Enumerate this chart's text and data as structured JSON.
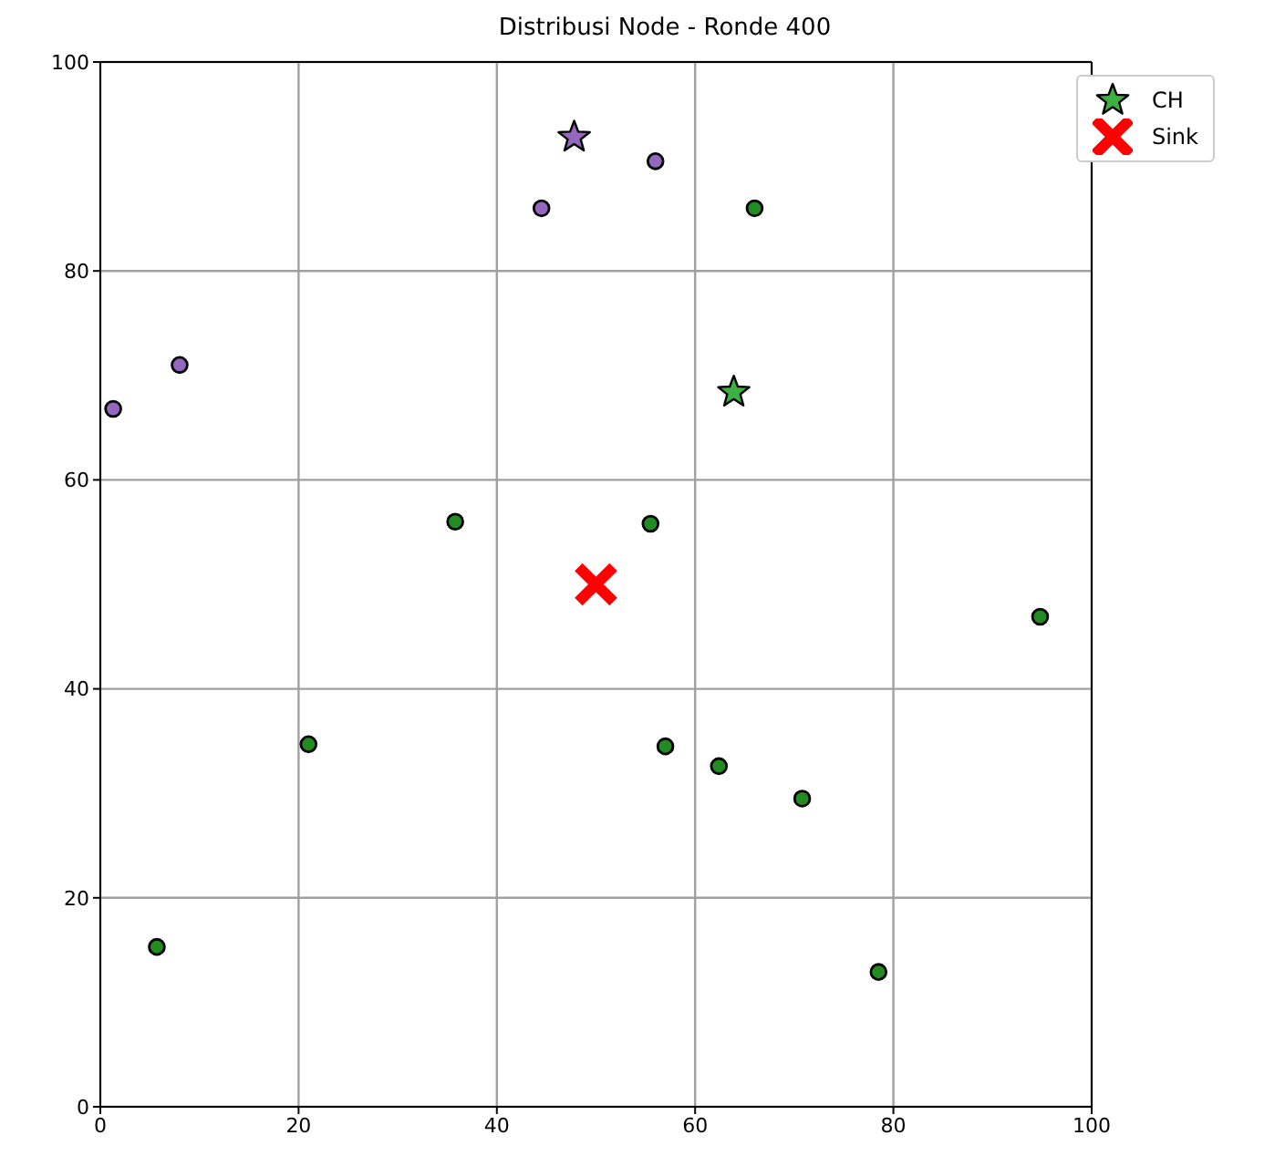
{
  "chart_data": {
    "type": "scatter",
    "title": "Distribusi Node - Ronde 400",
    "xlim": [
      0,
      100
    ],
    "ylim": [
      0,
      100
    ],
    "xticks": [
      0,
      20,
      40,
      60,
      80,
      100
    ],
    "yticks": [
      0,
      20,
      40,
      60,
      80,
      100
    ],
    "grid": true,
    "legend": "top right",
    "series": [
      {
        "color": "#9467bd",
        "marker": "circle",
        "x": [
          1.3,
          8.0,
          44.5,
          56.0
        ],
        "values": [
          66.8,
          71.0,
          86.0,
          90.5
        ]
      },
      {
        "color": "#228b22",
        "marker": "circle",
        "x": [
          35.8,
          66.0,
          55.5,
          21.0,
          5.7,
          57.0,
          62.4,
          70.8,
          78.5,
          94.8
        ],
        "values": [
          56.0,
          86.0,
          55.8,
          34.7,
          15.3,
          34.5,
          32.6,
          29.5,
          12.9,
          46.9
        ]
      },
      {
        "name": "CH",
        "marker": "star",
        "colors": [
          "#3cb043",
          "#9467bd"
        ],
        "x": [
          63.9,
          47.8
        ],
        "values": [
          68.4,
          92.8
        ]
      },
      {
        "name": "Sink",
        "color": "#ff0000",
        "marker": "cross",
        "x": [
          50
        ],
        "values": [
          50
        ]
      }
    ]
  }
}
